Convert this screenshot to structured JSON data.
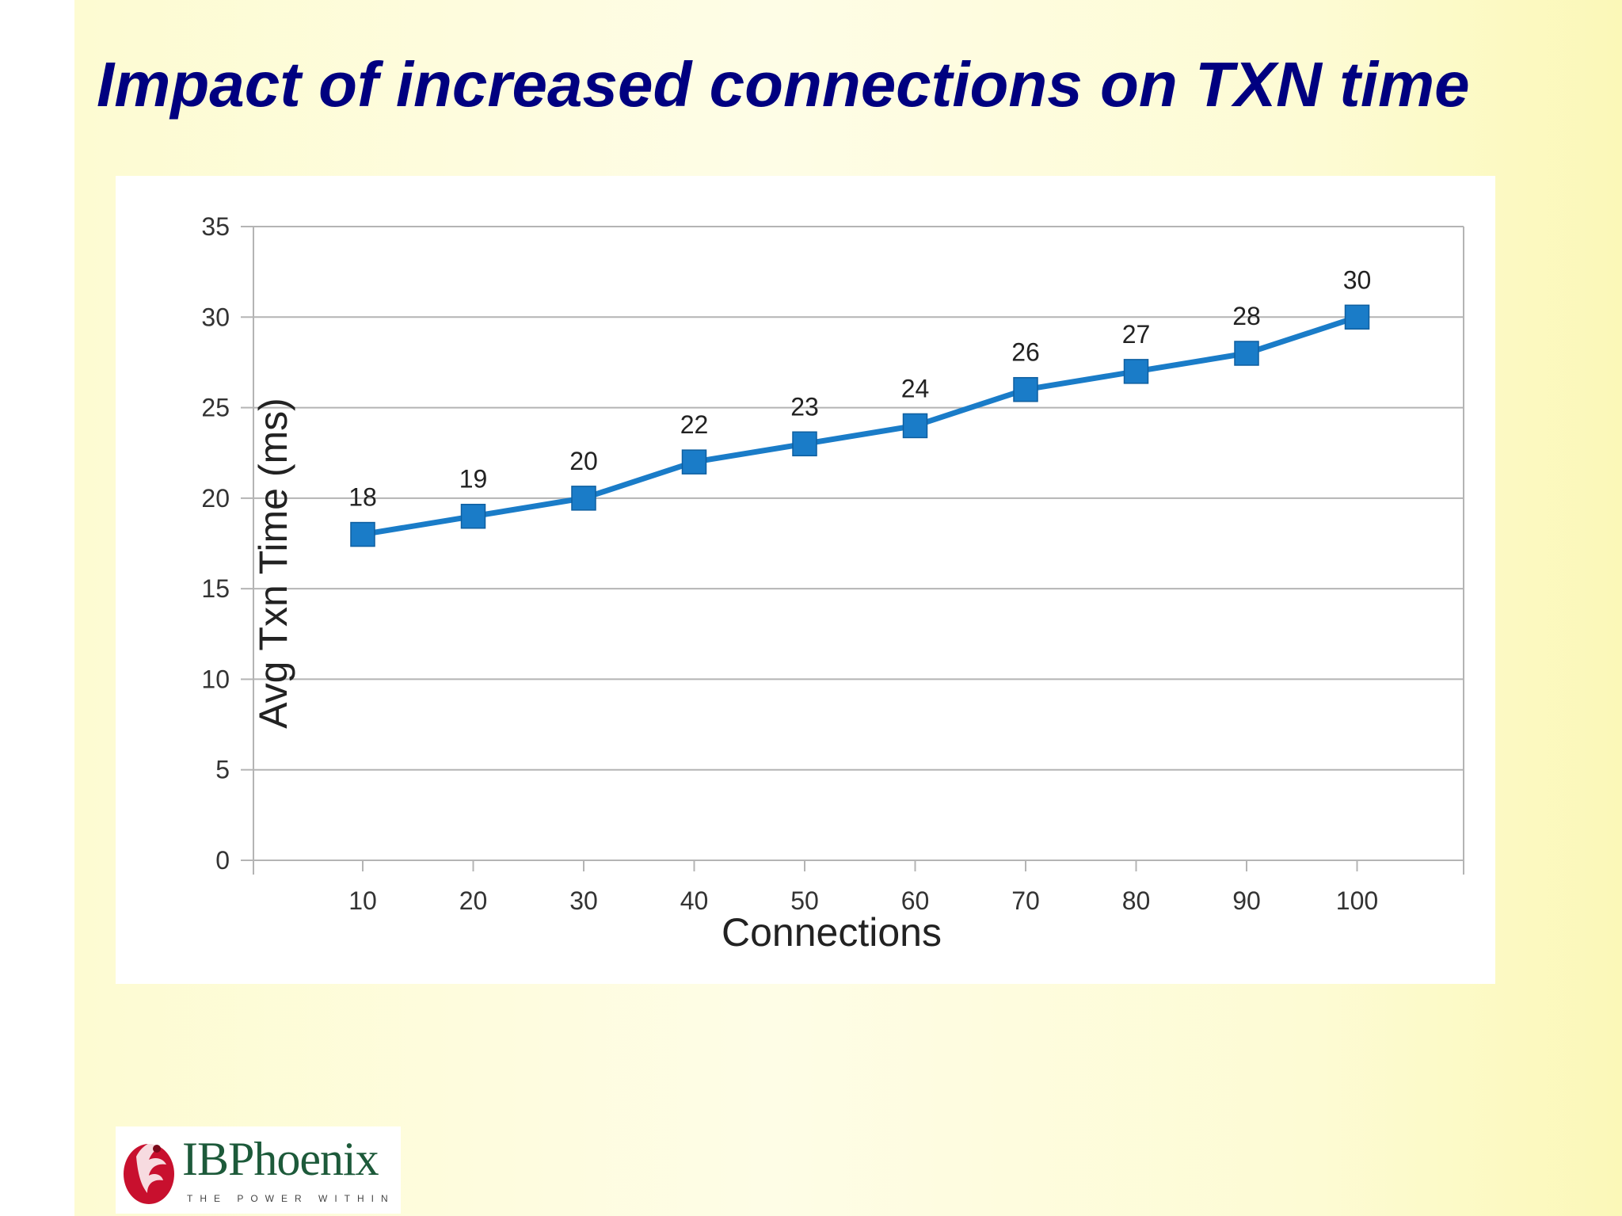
{
  "slide": {
    "title": "Impact of increased connections on TXN time"
  },
  "logo": {
    "name": "IBPhoenix",
    "tagline": "THE POWER WITHIN"
  },
  "chart_data": {
    "type": "line",
    "title": "",
    "xlabel": "Connections",
    "ylabel": "Avg Txn Time (ms)",
    "categories": [
      "10",
      "20",
      "30",
      "40",
      "50",
      "60",
      "70",
      "80",
      "90",
      "100"
    ],
    "series": [
      {
        "values": [
          18,
          19,
          20,
          22,
          23,
          24,
          26,
          27,
          28,
          30
        ],
        "color": "#1a7cc8"
      }
    ],
    "data_labels": true,
    "marker": "square",
    "ylim": [
      0,
      35
    ],
    "yticks": [
      0,
      5,
      10,
      15,
      20,
      25,
      30,
      35
    ],
    "grid": true,
    "legend": "none"
  }
}
